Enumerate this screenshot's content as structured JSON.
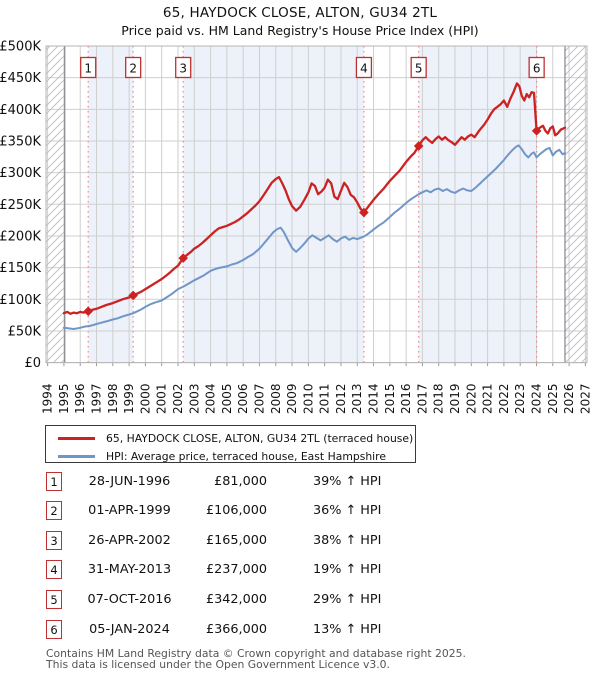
{
  "title": "65, HAYDOCK CLOSE, ALTON, GU34 2TL",
  "subtitle": "Price paid vs. HM Land Registry's House Price Index (HPI)",
  "chart_data": {
    "type": "line",
    "title": "Price paid vs. HPI",
    "x_axis": {
      "tick_years": [
        1994,
        1995,
        1996,
        1997,
        1998,
        1999,
        2000,
        2001,
        2002,
        2003,
        2004,
        2005,
        2006,
        2007,
        2008,
        2009,
        2010,
        2011,
        2012,
        2013,
        2014,
        2015,
        2016,
        2017,
        2018,
        2019,
        2020,
        2021,
        2022,
        2023,
        2024,
        2025,
        2026,
        2027
      ],
      "min": 1993.9,
      "max": 2027.1
    },
    "y_axis": {
      "labels": [
        "£0",
        "£50K",
        "£100K",
        "£150K",
        "£200K",
        "£250K",
        "£300K",
        "£350K",
        "£400K",
        "£450K",
        "£500K"
      ],
      "min": 0,
      "max": 500000,
      "tick_step": 50000
    },
    "hatch": {
      "data_start_year": 1995.05,
      "data_end_year": 2025.75
    },
    "band_color": "#edf1fa",
    "grid_color": "#cfcfcf",
    "sale_line_color": "#f09090",
    "sale_box_border": "#c03030",
    "series": [
      {
        "name": "65, HAYDOCK CLOSE, ALTON, GU34 2TL (terraced house)",
        "color": "#cc2222",
        "width": 2.3,
        "points_gbp_k": [
          [
            1995.0,
            78
          ],
          [
            1995.2,
            80
          ],
          [
            1995.4,
            77
          ],
          [
            1995.6,
            79
          ],
          [
            1995.8,
            78
          ],
          [
            1996.0,
            80
          ],
          [
            1996.2,
            79
          ],
          [
            1996.49,
            81
          ],
          [
            1996.7,
            83
          ],
          [
            1997.0,
            85
          ],
          [
            1997.3,
            88
          ],
          [
            1997.6,
            91
          ],
          [
            1998.0,
            94
          ],
          [
            1998.3,
            97
          ],
          [
            1998.6,
            100
          ],
          [
            1999.0,
            103
          ],
          [
            1999.25,
            106
          ],
          [
            1999.5,
            109
          ],
          [
            1999.75,
            112
          ],
          [
            2000.0,
            116
          ],
          [
            2000.25,
            120
          ],
          [
            2000.5,
            124
          ],
          [
            2000.75,
            128
          ],
          [
            2001.0,
            132
          ],
          [
            2001.25,
            137
          ],
          [
            2001.5,
            142
          ],
          [
            2001.75,
            148
          ],
          [
            2002.0,
            153
          ],
          [
            2002.32,
            165
          ],
          [
            2002.6,
            171
          ],
          [
            2002.8,
            175
          ],
          [
            2003.0,
            180
          ],
          [
            2003.25,
            184
          ],
          [
            2003.5,
            189
          ],
          [
            2003.75,
            195
          ],
          [
            2004.0,
            201
          ],
          [
            2004.25,
            207
          ],
          [
            2004.5,
            212
          ],
          [
            2004.75,
            214
          ],
          [
            2005.0,
            216
          ],
          [
            2005.25,
            219
          ],
          [
            2005.5,
            222
          ],
          [
            2005.75,
            226
          ],
          [
            2006.0,
            231
          ],
          [
            2006.25,
            236
          ],
          [
            2006.5,
            242
          ],
          [
            2006.75,
            248
          ],
          [
            2007.0,
            255
          ],
          [
            2007.25,
            264
          ],
          [
            2007.5,
            274
          ],
          [
            2007.75,
            284
          ],
          [
            2008.0,
            290
          ],
          [
            2008.2,
            293
          ],
          [
            2008.4,
            283
          ],
          [
            2008.6,
            272
          ],
          [
            2008.8,
            258
          ],
          [
            2009.0,
            247
          ],
          [
            2009.25,
            240
          ],
          [
            2009.5,
            246
          ],
          [
            2009.75,
            257
          ],
          [
            2010.0,
            269
          ],
          [
            2010.2,
            283
          ],
          [
            2010.4,
            279
          ],
          [
            2010.6,
            266
          ],
          [
            2010.8,
            270
          ],
          [
            2011.0,
            276
          ],
          [
            2011.2,
            289
          ],
          [
            2011.4,
            283
          ],
          [
            2011.6,
            262
          ],
          [
            2011.8,
            258
          ],
          [
            2012.0,
            271
          ],
          [
            2012.2,
            284
          ],
          [
            2012.4,
            277
          ],
          [
            2012.6,
            265
          ],
          [
            2012.8,
            261
          ],
          [
            2013.0,
            253
          ],
          [
            2013.2,
            243
          ],
          [
            2013.41,
            237
          ],
          [
            2013.7,
            247
          ],
          [
            2014.0,
            257
          ],
          [
            2014.3,
            266
          ],
          [
            2014.6,
            274
          ],
          [
            2015.0,
            287
          ],
          [
            2015.3,
            295
          ],
          [
            2015.6,
            303
          ],
          [
            2016.0,
            317
          ],
          [
            2016.3,
            326
          ],
          [
            2016.5,
            331
          ],
          [
            2016.77,
            342
          ],
          [
            2017.0,
            351
          ],
          [
            2017.2,
            356
          ],
          [
            2017.4,
            351
          ],
          [
            2017.6,
            347
          ],
          [
            2017.8,
            353
          ],
          [
            2018.0,
            357
          ],
          [
            2018.2,
            352
          ],
          [
            2018.4,
            356
          ],
          [
            2018.6,
            351
          ],
          [
            2018.8,
            348
          ],
          [
            2019.0,
            344
          ],
          [
            2019.2,
            350
          ],
          [
            2019.4,
            356
          ],
          [
            2019.6,
            352
          ],
          [
            2019.8,
            357
          ],
          [
            2020.0,
            360
          ],
          [
            2020.2,
            356
          ],
          [
            2020.5,
            367
          ],
          [
            2020.8,
            376
          ],
          [
            2021.0,
            384
          ],
          [
            2021.2,
            393
          ],
          [
            2021.4,
            400
          ],
          [
            2021.6,
            404
          ],
          [
            2021.8,
            408
          ],
          [
            2022.0,
            414
          ],
          [
            2022.2,
            404
          ],
          [
            2022.4,
            417
          ],
          [
            2022.6,
            428
          ],
          [
            2022.8,
            441
          ],
          [
            2022.95,
            436
          ],
          [
            2023.1,
            421
          ],
          [
            2023.25,
            414
          ],
          [
            2023.4,
            424
          ],
          [
            2023.55,
            419
          ],
          [
            2023.7,
            427
          ],
          [
            2023.85,
            426
          ],
          [
            2024.01,
            366
          ],
          [
            2024.2,
            371
          ],
          [
            2024.4,
            374
          ],
          [
            2024.55,
            366
          ],
          [
            2024.7,
            362
          ],
          [
            2024.85,
            370
          ],
          [
            2025.0,
            373
          ],
          [
            2025.15,
            359
          ],
          [
            2025.3,
            362
          ],
          [
            2025.5,
            368
          ],
          [
            2025.75,
            371
          ]
        ]
      },
      {
        "name": "HPI: Average price, terraced house, East Hampshire",
        "color": "#7096c7",
        "width": 2,
        "points_gbp_k": [
          [
            1995.0,
            55
          ],
          [
            1995.3,
            54
          ],
          [
            1995.6,
            53
          ],
          [
            1996.0,
            55
          ],
          [
            1996.3,
            57
          ],
          [
            1996.6,
            58
          ],
          [
            1997.0,
            61
          ],
          [
            1997.3,
            63
          ],
          [
            1997.6,
            65
          ],
          [
            1998.0,
            68
          ],
          [
            1998.3,
            70
          ],
          [
            1998.6,
            73
          ],
          [
            1999.0,
            76
          ],
          [
            1999.25,
            78
          ],
          [
            1999.5,
            81
          ],
          [
            1999.75,
            84
          ],
          [
            2000.0,
            88
          ],
          [
            2000.3,
            92
          ],
          [
            2000.6,
            95
          ],
          [
            2001.0,
            98
          ],
          [
            2001.3,
            103
          ],
          [
            2001.6,
            108
          ],
          [
            2002.0,
            116
          ],
          [
            2002.32,
            120
          ],
          [
            2002.6,
            124
          ],
          [
            2003.0,
            130
          ],
          [
            2003.3,
            134
          ],
          [
            2003.6,
            138
          ],
          [
            2004.0,
            145
          ],
          [
            2004.3,
            148
          ],
          [
            2004.6,
            150
          ],
          [
            2005.0,
            152
          ],
          [
            2005.3,
            155
          ],
          [
            2005.6,
            157
          ],
          [
            2006.0,
            162
          ],
          [
            2006.3,
            167
          ],
          [
            2006.6,
            171
          ],
          [
            2007.0,
            180
          ],
          [
            2007.3,
            189
          ],
          [
            2007.6,
            198
          ],
          [
            2007.85,
            206
          ],
          [
            2008.1,
            211
          ],
          [
            2008.3,
            213
          ],
          [
            2008.5,
            206
          ],
          [
            2008.75,
            193
          ],
          [
            2009.0,
            181
          ],
          [
            2009.25,
            175
          ],
          [
            2009.5,
            181
          ],
          [
            2009.75,
            188
          ],
          [
            2010.0,
            196
          ],
          [
            2010.25,
            201
          ],
          [
            2010.5,
            197
          ],
          [
            2010.75,
            193
          ],
          [
            2011.0,
            197
          ],
          [
            2011.25,
            201
          ],
          [
            2011.5,
            195
          ],
          [
            2011.75,
            191
          ],
          [
            2012.0,
            196
          ],
          [
            2012.25,
            199
          ],
          [
            2012.5,
            194
          ],
          [
            2012.75,
            197
          ],
          [
            2013.0,
            195
          ],
          [
            2013.41,
            199
          ],
          [
            2013.7,
            204
          ],
          [
            2014.0,
            210
          ],
          [
            2014.3,
            216
          ],
          [
            2014.6,
            221
          ],
          [
            2015.0,
            230
          ],
          [
            2015.3,
            237
          ],
          [
            2015.6,
            243
          ],
          [
            2016.0,
            252
          ],
          [
            2016.3,
            258
          ],
          [
            2016.77,
            266
          ],
          [
            2017.0,
            269
          ],
          [
            2017.25,
            272
          ],
          [
            2017.5,
            269
          ],
          [
            2017.75,
            273
          ],
          [
            2018.0,
            275
          ],
          [
            2018.25,
            271
          ],
          [
            2018.5,
            274
          ],
          [
            2018.75,
            270
          ],
          [
            2019.0,
            268
          ],
          [
            2019.25,
            272
          ],
          [
            2019.5,
            275
          ],
          [
            2019.75,
            272
          ],
          [
            2020.0,
            271
          ],
          [
            2020.25,
            276
          ],
          [
            2020.5,
            282
          ],
          [
            2020.75,
            288
          ],
          [
            2021.0,
            294
          ],
          [
            2021.25,
            300
          ],
          [
            2021.5,
            306
          ],
          [
            2021.75,
            313
          ],
          [
            2022.0,
            320
          ],
          [
            2022.25,
            328
          ],
          [
            2022.5,
            335
          ],
          [
            2022.75,
            341
          ],
          [
            2022.9,
            343
          ],
          [
            2023.1,
            337
          ],
          [
            2023.3,
            329
          ],
          [
            2023.5,
            324
          ],
          [
            2023.7,
            330
          ],
          [
            2023.85,
            332
          ],
          [
            2024.01,
            324
          ],
          [
            2024.2,
            329
          ],
          [
            2024.4,
            333
          ],
          [
            2024.6,
            337
          ],
          [
            2024.8,
            339
          ],
          [
            2025.0,
            327
          ],
          [
            2025.2,
            333
          ],
          [
            2025.4,
            336
          ],
          [
            2025.6,
            329
          ],
          [
            2025.75,
            331
          ]
        ]
      }
    ],
    "sales": [
      {
        "n": "1",
        "year": 1996.49,
        "price_gbp_k": 81
      },
      {
        "n": "2",
        "year": 1999.25,
        "price_gbp_k": 106
      },
      {
        "n": "3",
        "year": 2002.32,
        "price_gbp_k": 165
      },
      {
        "n": "4",
        "year": 2013.41,
        "price_gbp_k": 237
      },
      {
        "n": "5",
        "year": 2016.77,
        "price_gbp_k": 342
      },
      {
        "n": "6",
        "year": 2024.01,
        "price_gbp_k": 366
      }
    ]
  },
  "legend": {
    "items": [
      {
        "label": "65, HAYDOCK CLOSE, ALTON, GU34 2TL (terraced house)",
        "color": "#cc2222"
      },
      {
        "label": "HPI: Average price, terraced house, East Hampshire",
        "color": "#7096c7"
      }
    ]
  },
  "table": {
    "rows": [
      {
        "num": "1",
        "date": "28-JUN-1996",
        "price": "£81,000",
        "hpi": "39% ↑ HPI"
      },
      {
        "num": "2",
        "date": "01-APR-1999",
        "price": "£106,000",
        "hpi": "36% ↑ HPI"
      },
      {
        "num": "3",
        "date": "26-APR-2002",
        "price": "£165,000",
        "hpi": "38% ↑ HPI"
      },
      {
        "num": "4",
        "date": "31-MAY-2013",
        "price": "£237,000",
        "hpi": "19% ↑ HPI"
      },
      {
        "num": "5",
        "date": "07-OCT-2016",
        "price": "£342,000",
        "hpi": "29% ↑ HPI"
      },
      {
        "num": "6",
        "date": "05-JAN-2024",
        "price": "£366,000",
        "hpi": "13% ↑ HPI"
      }
    ]
  },
  "footer": {
    "line1": "Contains HM Land Registry data © Crown copyright and database right 2025.",
    "line2": "This data is licensed under the Open Government Licence v3.0."
  }
}
